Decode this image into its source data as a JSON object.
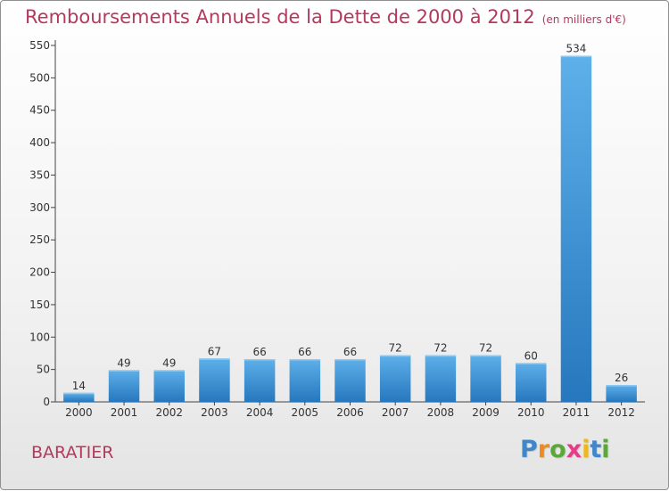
{
  "title": "Remboursements Annuels de la Dette de 2000 à 2012",
  "unit": "(en milliers d'€)",
  "commune": "BARATIER",
  "logo": {
    "letters": [
      "P",
      "r",
      "o",
      "x",
      "i",
      "t",
      "i"
    ],
    "colors": [
      "#3f87c8",
      "#f08a1c",
      "#5aa83a",
      "#e73b8a",
      "#f0b71c",
      "#3f87c8",
      "#5aa83a"
    ]
  },
  "colors": {
    "title": "#b5395d",
    "bar_light": "#5eb0ea",
    "bar_dark": "#2677bd"
  },
  "chart_data": {
    "type": "bar",
    "categories": [
      "2000",
      "2001",
      "2002",
      "2003",
      "2004",
      "2005",
      "2006",
      "2007",
      "2008",
      "2009",
      "2010",
      "2011",
      "2012"
    ],
    "values": [
      14,
      49,
      49,
      67,
      66,
      66,
      66,
      72,
      72,
      72,
      60,
      534,
      26
    ],
    "value_labels": [
      "14",
      "49",
      "49",
      "67",
      "66",
      "66",
      "66",
      "72",
      "72",
      "72",
      "60",
      "534",
      "26"
    ],
    "yticks": [
      0,
      50,
      100,
      150,
      200,
      250,
      300,
      350,
      400,
      450,
      500,
      550
    ],
    "ylim": [
      0,
      550
    ],
    "grid": false,
    "xlabel": "",
    "ylabel": ""
  }
}
